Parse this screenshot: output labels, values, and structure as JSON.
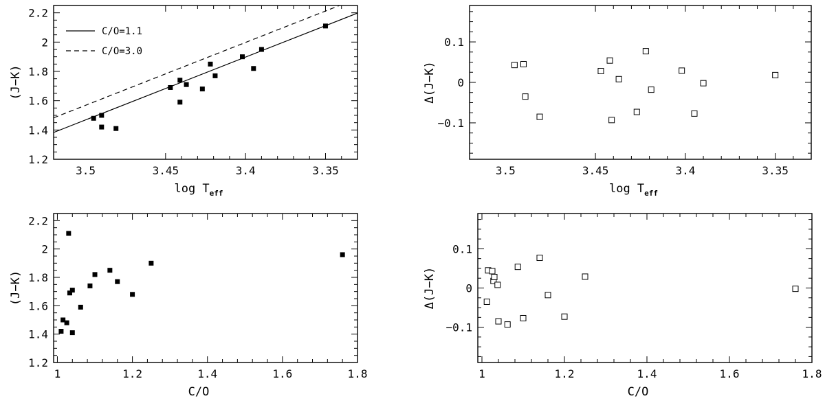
{
  "chart_data": [
    {
      "id": "p1",
      "type": "scatter",
      "xlabel": "log T",
      "xlabel_sub": "eff",
      "ylabel": "(J−K)",
      "xlim": [
        3.52,
        3.33
      ],
      "ylim": [
        1.2,
        2.25
      ],
      "xticks": [
        3.5,
        3.45,
        3.4,
        3.35
      ],
      "xtick_labels": [
        "3.5",
        "3.45",
        "3.4",
        "3.35"
      ],
      "yticks": [
        1.2,
        1.4,
        1.6,
        1.8,
        2.0,
        2.2
      ],
      "ytick_labels": [
        "1.2",
        "1.4",
        "1.6",
        "1.8",
        "2",
        "2.2"
      ],
      "marker": "filled-square",
      "points": [
        [
          3.495,
          1.48
        ],
        [
          3.49,
          1.5
        ],
        [
          3.49,
          1.42
        ],
        [
          3.481,
          1.41
        ],
        [
          3.447,
          1.69
        ],
        [
          3.441,
          1.74
        ],
        [
          3.441,
          1.59
        ],
        [
          3.437,
          1.71
        ],
        [
          3.427,
          1.68
        ],
        [
          3.422,
          1.85
        ],
        [
          3.419,
          1.77
        ],
        [
          3.402,
          1.9
        ],
        [
          3.395,
          1.82
        ],
        [
          3.39,
          1.95
        ],
        [
          3.35,
          2.11
        ]
      ],
      "lines": [
        {
          "name": "C/O=1.1",
          "style": "solid",
          "x": [
            3.52,
            3.33
          ],
          "y": [
            1.383,
            2.198
          ]
        },
        {
          "name": "C/O=3.0",
          "style": "dashed",
          "x": [
            3.52,
            3.33
          ],
          "y": [
            1.483,
            2.298
          ]
        }
      ],
      "legend": [
        "C/O=1.1",
        "C/O=3.0"
      ],
      "legend_position": "top-left"
    },
    {
      "id": "p2",
      "type": "scatter",
      "xlabel": "log T",
      "xlabel_sub": "eff",
      "ylabel": "Δ(J−K)",
      "xlim": [
        3.52,
        3.33
      ],
      "ylim": [
        -0.19,
        0.19
      ],
      "xticks": [
        3.5,
        3.45,
        3.4,
        3.35
      ],
      "xtick_labels": [
        "3.5",
        "3.45",
        "3.4",
        "3.35"
      ],
      "yticks": [
        -0.1,
        0,
        0.1
      ],
      "ytick_labels": [
        "−0.1",
        "0",
        "0.1"
      ],
      "marker": "open-square",
      "points": [
        [
          3.495,
          0.043
        ],
        [
          3.49,
          0.045
        ],
        [
          3.489,
          -0.035
        ],
        [
          3.481,
          -0.085
        ],
        [
          3.447,
          0.028
        ],
        [
          3.442,
          0.054
        ],
        [
          3.441,
          -0.093
        ],
        [
          3.437,
          0.008
        ],
        [
          3.427,
          -0.073
        ],
        [
          3.422,
          0.077
        ],
        [
          3.419,
          -0.018
        ],
        [
          3.402,
          0.029
        ],
        [
          3.395,
          -0.077
        ],
        [
          3.39,
          -0.002
        ],
        [
          3.35,
          0.018
        ]
      ]
    },
    {
      "id": "p3",
      "type": "scatter",
      "xlabel": "C/O",
      "ylabel": "(J−K)",
      "xlim": [
        0.99,
        1.8
      ],
      "ylim": [
        1.2,
        2.25
      ],
      "xticks": [
        1.0,
        1.2,
        1.4,
        1.6,
        1.8
      ],
      "xtick_labels": [
        "1",
        "1.2",
        "1.4",
        "1.6",
        "1.8"
      ],
      "yticks": [
        1.2,
        1.4,
        1.6,
        1.8,
        2.0,
        2.2
      ],
      "ytick_labels": [
        "1.2",
        "1.4",
        "1.6",
        "1.8",
        "2",
        "2.2"
      ],
      "marker": "filled-square",
      "points": [
        [
          1.01,
          1.42
        ],
        [
          1.015,
          1.5
        ],
        [
          1.025,
          1.48
        ],
        [
          1.03,
          2.11
        ],
        [
          1.033,
          1.69
        ],
        [
          1.04,
          1.71
        ],
        [
          1.04,
          1.41
        ],
        [
          1.062,
          1.59
        ],
        [
          1.087,
          1.74
        ],
        [
          1.1,
          1.82
        ],
        [
          1.14,
          1.85
        ],
        [
          1.16,
          1.77
        ],
        [
          1.2,
          1.68
        ],
        [
          1.25,
          1.9
        ],
        [
          1.76,
          1.96
        ]
      ]
    },
    {
      "id": "p4",
      "type": "scatter",
      "xlabel": "C/O",
      "ylabel": "Δ(J−K)",
      "xlim": [
        0.99,
        1.8
      ],
      "ylim": [
        -0.19,
        0.19
      ],
      "xticks": [
        1.0,
        1.2,
        1.4,
        1.6,
        1.8
      ],
      "xtick_labels": [
        "1",
        "1.2",
        "1.4",
        "1.6",
        "1.8"
      ],
      "yticks": [
        -0.1,
        0,
        0.1
      ],
      "ytick_labels": [
        "−0.1",
        "0",
        "0.1"
      ],
      "marker": "open-square",
      "points": [
        [
          1.012,
          -0.035
        ],
        [
          1.015,
          0.045
        ],
        [
          1.025,
          0.043
        ],
        [
          1.028,
          0.018
        ],
        [
          1.03,
          0.028
        ],
        [
          1.038,
          0.008
        ],
        [
          1.04,
          -0.085
        ],
        [
          1.062,
          -0.093
        ],
        [
          1.087,
          0.054
        ],
        [
          1.1,
          -0.077
        ],
        [
          1.14,
          0.077
        ],
        [
          1.16,
          -0.018
        ],
        [
          1.2,
          -0.073
        ],
        [
          1.25,
          0.029
        ],
        [
          1.76,
          -0.002
        ]
      ]
    }
  ]
}
